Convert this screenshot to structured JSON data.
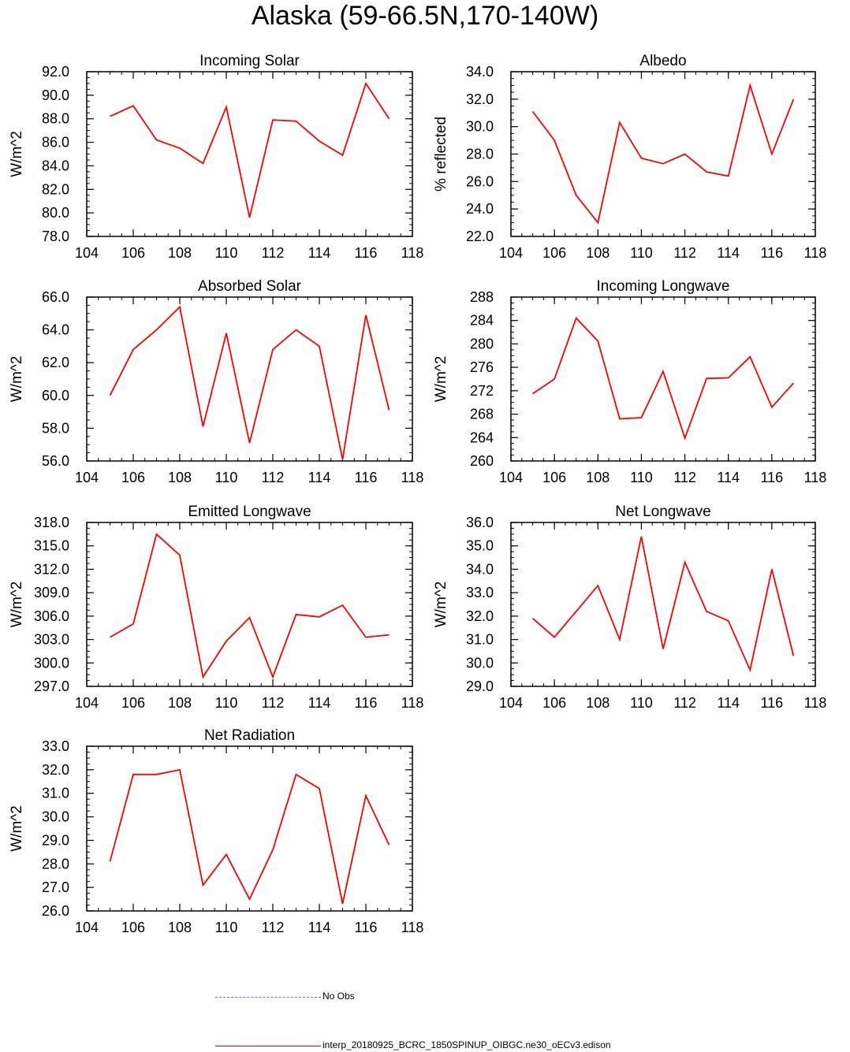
{
  "title": "Alaska (59-66.5N,170-140W)",
  "chart_data": [
    {
      "type": "line",
      "title": "Incoming Solar",
      "ylabel": "W/m^2",
      "xlabel": "",
      "xlim": [
        104,
        118
      ],
      "ylim": [
        78,
        92
      ],
      "xticks": [
        104,
        106,
        108,
        110,
        112,
        114,
        116,
        118
      ],
      "yticks": [
        78.0,
        80.0,
        82.0,
        84.0,
        86.0,
        88.0,
        90.0,
        92.0
      ],
      "ytick_decimals": 1,
      "x": [
        105,
        106,
        107,
        108,
        109,
        110,
        111,
        112,
        113,
        114,
        115,
        116,
        117
      ],
      "series": [
        {
          "values": [
            88.2,
            89.1,
            86.2,
            85.5,
            84.2,
            89.0,
            79.6,
            87.9,
            87.8,
            86.1,
            84.9,
            91.0,
            88.0
          ]
        }
      ]
    },
    {
      "type": "line",
      "title": "Albedo",
      "ylabel": "% reflected",
      "xlabel": "",
      "xlim": [
        104,
        118
      ],
      "ylim": [
        22,
        34
      ],
      "xticks": [
        104,
        106,
        108,
        110,
        112,
        114,
        116,
        118
      ],
      "yticks": [
        22.0,
        24.0,
        26.0,
        28.0,
        30.0,
        32.0,
        34.0
      ],
      "ytick_decimals": 1,
      "x": [
        105,
        106,
        107,
        108,
        109,
        110,
        111,
        112,
        113,
        114,
        115,
        116,
        117
      ],
      "series": [
        {
          "values": [
            31.1,
            29.0,
            25.0,
            23.0,
            30.3,
            27.7,
            27.3,
            28.0,
            26.7,
            26.4,
            33.0,
            28.0,
            32.0
          ]
        }
      ]
    },
    {
      "type": "line",
      "title": "Absorbed Solar",
      "ylabel": "W/m^2",
      "xlabel": "",
      "xlim": [
        104,
        118
      ],
      "ylim": [
        56,
        66
      ],
      "xticks": [
        104,
        106,
        108,
        110,
        112,
        114,
        116,
        118
      ],
      "yticks": [
        56.0,
        58.0,
        60.0,
        62.0,
        64.0,
        66.0
      ],
      "ytick_decimals": 1,
      "x": [
        105,
        106,
        107,
        108,
        109,
        110,
        111,
        112,
        113,
        114,
        115,
        116,
        117
      ],
      "series": [
        {
          "values": [
            60.0,
            62.8,
            64.0,
            65.4,
            58.1,
            63.8,
            57.1,
            62.8,
            64.0,
            63.0,
            56.1,
            64.9,
            59.1
          ]
        }
      ]
    },
    {
      "type": "line",
      "title": "Incoming Longwave",
      "ylabel": "W/m^2",
      "xlabel": "",
      "xlim": [
        104,
        118
      ],
      "ylim": [
        260,
        288
      ],
      "xticks": [
        104,
        106,
        108,
        110,
        112,
        114,
        116,
        118
      ],
      "yticks": [
        260,
        264,
        268,
        272,
        276,
        280,
        284,
        288
      ],
      "ytick_decimals": 0,
      "x": [
        105,
        106,
        107,
        108,
        109,
        110,
        111,
        112,
        113,
        114,
        115,
        116,
        117
      ],
      "series": [
        {
          "values": [
            271.5,
            274.0,
            284.4,
            280.5,
            267.2,
            267.4,
            275.3,
            263.9,
            274.1,
            274.2,
            277.8,
            269.2,
            273.3
          ]
        }
      ]
    },
    {
      "type": "line",
      "title": "Emitted Longwave",
      "ylabel": "W/m^2",
      "xlabel": "",
      "xlim": [
        104,
        118
      ],
      "ylim": [
        297,
        318
      ],
      "xticks": [
        104,
        106,
        108,
        110,
        112,
        114,
        116,
        118
      ],
      "yticks": [
        297.0,
        300.0,
        303.0,
        306.0,
        309.0,
        312.0,
        315.0,
        318.0
      ],
      "ytick_decimals": 1,
      "x": [
        105,
        106,
        107,
        108,
        109,
        110,
        111,
        112,
        113,
        114,
        115,
        116,
        117
      ],
      "series": [
        {
          "values": [
            303.3,
            305.0,
            316.5,
            313.8,
            298.2,
            302.8,
            305.8,
            298.2,
            306.2,
            305.9,
            307.4,
            303.3,
            303.6
          ]
        }
      ]
    },
    {
      "type": "line",
      "title": "Net Longwave",
      "ylabel": "W/m^2",
      "xlabel": "",
      "xlim": [
        104,
        118
      ],
      "ylim": [
        29,
        36
      ],
      "xticks": [
        104,
        106,
        108,
        110,
        112,
        114,
        116,
        118
      ],
      "yticks": [
        29.0,
        30.0,
        31.0,
        32.0,
        33.0,
        34.0,
        35.0,
        36.0
      ],
      "ytick_decimals": 1,
      "x": [
        105,
        106,
        107,
        108,
        109,
        110,
        111,
        112,
        113,
        114,
        115,
        116,
        117
      ],
      "series": [
        {
          "values": [
            31.9,
            31.1,
            32.2,
            33.3,
            31.0,
            35.4,
            30.6,
            34.3,
            32.2,
            31.8,
            29.7,
            34.0,
            30.3
          ]
        }
      ]
    },
    {
      "type": "line",
      "title": "Net Radiation",
      "ylabel": "W/m^2",
      "xlabel": "",
      "xlim": [
        104,
        118
      ],
      "ylim": [
        26,
        33
      ],
      "xticks": [
        104,
        106,
        108,
        110,
        112,
        114,
        116,
        118
      ],
      "yticks": [
        26.0,
        27.0,
        28.0,
        29.0,
        30.0,
        31.0,
        32.0,
        33.0
      ],
      "ytick_decimals": 1,
      "x": [
        105,
        106,
        107,
        108,
        109,
        110,
        111,
        112,
        113,
        114,
        115,
        116,
        117
      ],
      "series": [
        {
          "values": [
            28.1,
            31.8,
            31.8,
            32.0,
            27.1,
            28.4,
            26.5,
            28.6,
            31.8,
            31.2,
            26.3,
            30.9,
            28.8
          ]
        }
      ]
    }
  ],
  "legend": {
    "obs_label": "No Obs",
    "model_label": "interp_20180925_BCRC_1850SPINUP_OIBGC.ne30_oECv3.edison"
  },
  "colors": {
    "model": "#ff0000",
    "obs": "#6a6aff",
    "axis": "#000000"
  }
}
